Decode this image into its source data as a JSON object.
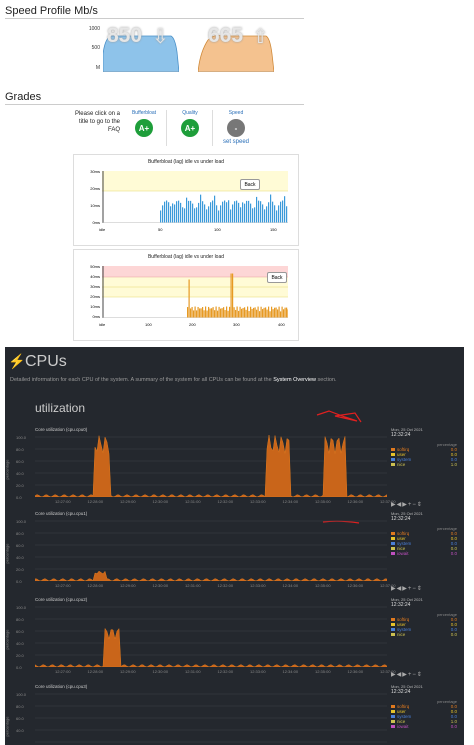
{
  "speed": {
    "title": "Speed Profile Mb/s",
    "axis": [
      "1000",
      "500",
      "M"
    ],
    "download_value": "850",
    "upload_value": "665",
    "download_color": "#8ec3ea",
    "upload_color": "#f4c28f"
  },
  "grades": {
    "title": "Grades",
    "hint": "Please click on a title to go to the FAQ",
    "items": [
      {
        "label": "Bufferbloat",
        "grade": "A+",
        "color": "#1e9e3a"
      },
      {
        "label": "Quality",
        "grade": "A+",
        "color": "#1e9e3a"
      },
      {
        "label": "Speed",
        "grade": "-",
        "color": "#777777",
        "link": "set speed"
      }
    ]
  },
  "bb1": {
    "title": "Bufferbloat (lag) idle vs under load",
    "yticks": [
      "30ms",
      "20ms",
      "10ms",
      "0ms"
    ],
    "xticks": [
      "idle",
      "50",
      "100",
      "150"
    ],
    "back": "Back"
  },
  "bb2": {
    "title": "Bufferbloat (lag) idle vs under load",
    "yticks": [
      "50ms",
      "40ms",
      "30ms",
      "20ms",
      "10ms",
      "0ms"
    ],
    "xticks": [
      "idle",
      "100",
      "200",
      "300",
      "400"
    ],
    "back": "Back"
  },
  "cpus": {
    "title": "CPUs",
    "desc_pre": "Detailed information for each CPU of the system. A summary of the system for all CPUs can be found at the",
    "desc_link": "System Overview",
    "desc_post": "section.",
    "section": "utilization",
    "y_label": "percentage",
    "xticks": [
      "12:27:00",
      "12:28:00",
      "12:29:00",
      "12:30:00",
      "12:31:00",
      "12:32:00",
      "12:33:00",
      "12:34:00",
      "12:35:00",
      "12:36:00",
      "12:37:00"
    ],
    "charts": [
      {
        "title": "Core utilization (cpu.cpu0)",
        "date": "Mon, 25 Oct 2021",
        "time": "12:32:24",
        "yticks": [
          "100.0",
          "80.0",
          "60.0",
          "40.0",
          "20.0",
          "0.0"
        ],
        "legend": [
          {
            "name": "softirq",
            "value": "0.0",
            "color": "#e07a1f"
          },
          {
            "name": "user",
            "value": "0.0",
            "color": "#e6c229"
          },
          {
            "name": "system",
            "value": "0.0",
            "color": "#4a7fd8"
          },
          {
            "name": "nice",
            "value": "1.0",
            "color": "#ccc050"
          }
        ]
      },
      {
        "title": "Core utilization (cpu.cpu1)",
        "date": "Mon, 25 Oct 2021",
        "time": "12:32:24",
        "yticks": [
          "100.0",
          "80.0",
          "60.0",
          "40.0",
          "20.0",
          "0.0"
        ],
        "legend": [
          {
            "name": "softirq",
            "value": "0.0",
            "color": "#e07a1f"
          },
          {
            "name": "user",
            "value": "0.0",
            "color": "#e6c229"
          },
          {
            "name": "system",
            "value": "0.0",
            "color": "#4a7fd8"
          },
          {
            "name": "nice",
            "value": "0.0",
            "color": "#ccc050"
          },
          {
            "name": "iowait",
            "value": "0.0",
            "color": "#c050c0"
          }
        ]
      },
      {
        "title": "Core utilization (cpu.cpu2)",
        "date": "Mon, 25 Oct 2021",
        "time": "12:32:24",
        "yticks": [
          "100.0",
          "80.0",
          "60.0",
          "40.0",
          "20.0",
          "0.0"
        ],
        "legend": [
          {
            "name": "softirq",
            "value": "0.0",
            "color": "#e07a1f"
          },
          {
            "name": "user",
            "value": "0.0",
            "color": "#e6c229"
          },
          {
            "name": "system",
            "value": "0.0",
            "color": "#4a7fd8"
          },
          {
            "name": "nice",
            "value": "0.0",
            "color": "#ccc050"
          }
        ]
      },
      {
        "title": "Core utilization (cpu.cpu3)",
        "date": "Mon, 25 Oct 2021",
        "time": "12:32:24",
        "yticks": [
          "100.0",
          "80.0",
          "60.0",
          "40.0"
        ],
        "legend": [
          {
            "name": "softirq",
            "value": "0.0",
            "color": "#e07a1f"
          },
          {
            "name": "user",
            "value": "0.0",
            "color": "#e6c229"
          },
          {
            "name": "system",
            "value": "0.0",
            "color": "#4a7fd8"
          },
          {
            "name": "nice",
            "value": "1.0",
            "color": "#ccc050"
          },
          {
            "name": "iowait",
            "value": "0.0",
            "color": "#c050c0"
          }
        ]
      }
    ]
  }
}
